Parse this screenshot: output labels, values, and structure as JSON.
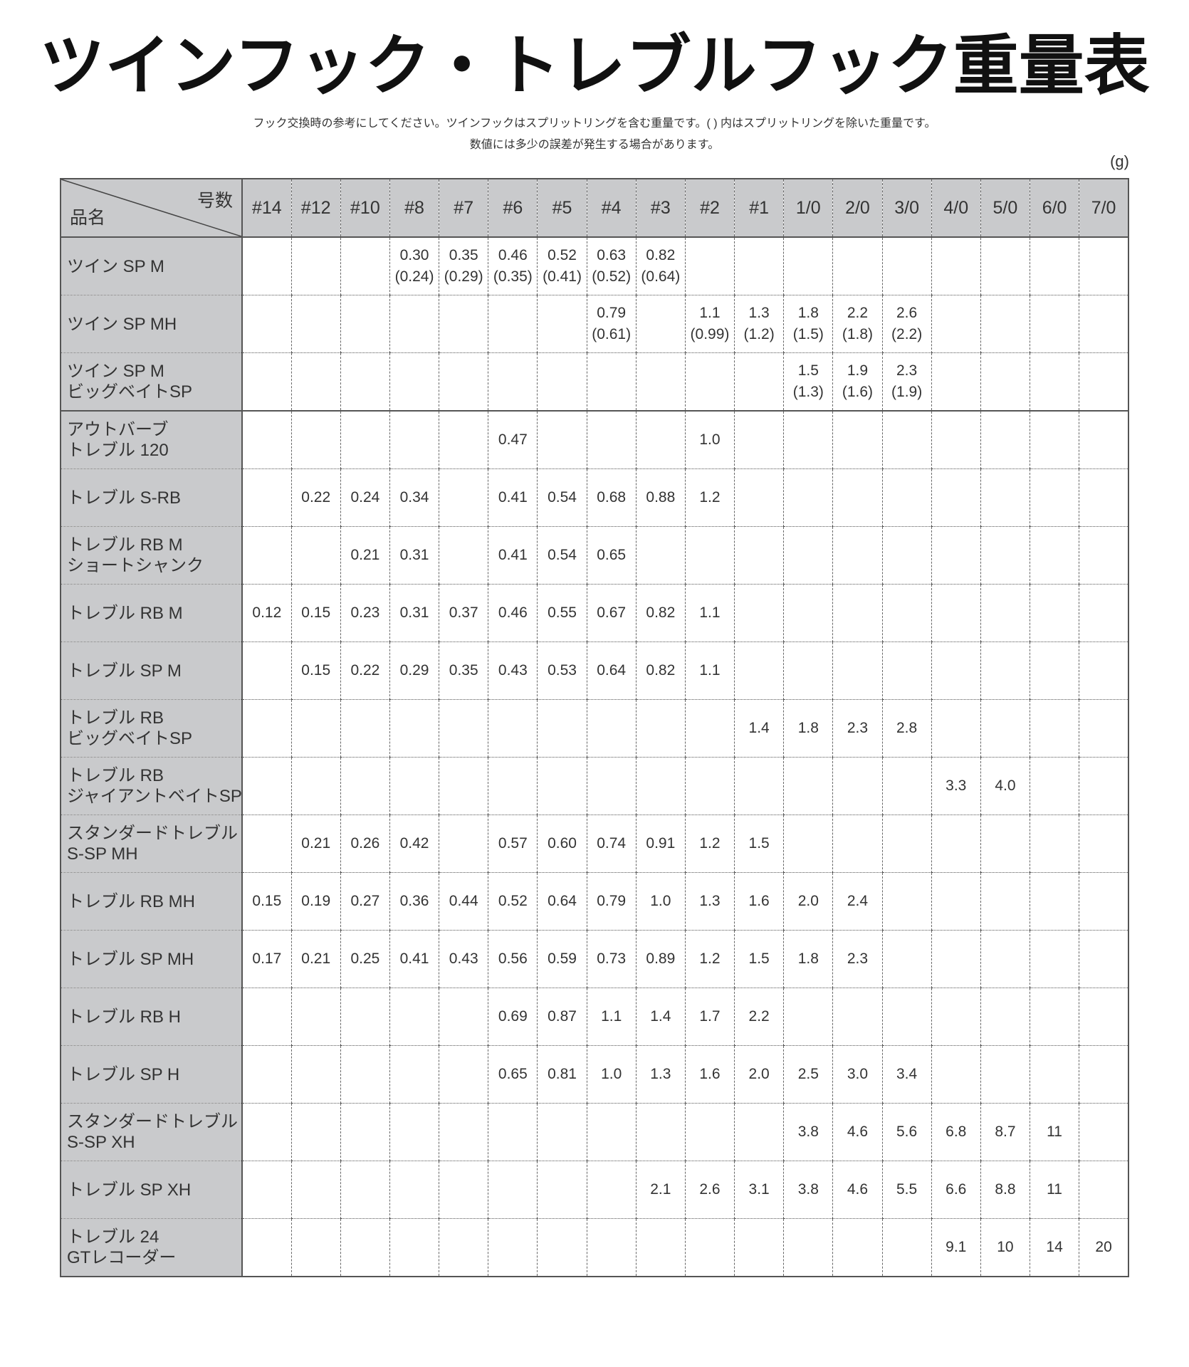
{
  "title": "ツインフック・トレブルフック重量表",
  "notes": [
    "フック交換時の参考にしてください。ツインフックはスプリットリングを含む重量です。( ) 内はスプリットリングを除いた重量です。",
    "数値には多少の誤差が発生する場合があります。"
  ],
  "unit": "(g)",
  "table": {
    "corner_top": "号数",
    "corner_bottom": "品名",
    "columns": [
      "#14",
      "#12",
      "#10",
      "#8",
      "#7",
      "#6",
      "#5",
      "#4",
      "#3",
      "#2",
      "#1",
      "1/0",
      "2/0",
      "3/0",
      "4/0",
      "5/0",
      "6/0",
      "7/0"
    ],
    "rows": [
      {
        "name": [
          "ツイン SP M"
        ],
        "cells": [
          "",
          "",
          "",
          "0.30",
          "0.35",
          "0.46",
          "0.52",
          "0.63",
          "0.82",
          "",
          "",
          "",
          "",
          "",
          "",
          "",
          "",
          ""
        ],
        "sub": [
          "",
          "",
          "",
          "(0.24)",
          "(0.29)",
          "(0.35)",
          "(0.41)",
          "(0.52)",
          "(0.64)",
          "",
          "",
          "",
          "",
          "",
          "",
          "",
          "",
          ""
        ]
      },
      {
        "name": [
          "ツイン SP MH"
        ],
        "cells": [
          "",
          "",
          "",
          "",
          "",
          "",
          "",
          "0.79",
          "",
          "1.1",
          "1.3",
          "1.8",
          "2.2",
          "2.6",
          "",
          "",
          "",
          ""
        ],
        "sub": [
          "",
          "",
          "",
          "",
          "",
          "",
          "",
          "(0.61)",
          "",
          "(0.99)",
          "(1.2)",
          "(1.5)",
          "(1.8)",
          "(2.2)",
          "",
          "",
          "",
          ""
        ]
      },
      {
        "name": [
          "ツイン SP M",
          "ビッグベイトSP"
        ],
        "cells": [
          "",
          "",
          "",
          "",
          "",
          "",
          "",
          "",
          "",
          "",
          "",
          "1.5",
          "1.9",
          "2.3",
          "",
          "",
          "",
          ""
        ],
        "sub": [
          "",
          "",
          "",
          "",
          "",
          "",
          "",
          "",
          "",
          "",
          "",
          "(1.3)",
          "(1.6)",
          "(1.9)",
          "",
          "",
          "",
          ""
        ]
      },
      {
        "name": [
          "アウトバーブ",
          "トレブル 120"
        ],
        "cells": [
          "",
          "",
          "",
          "",
          "",
          "0.47",
          "",
          "",
          "",
          "1.0",
          "",
          "",
          "",
          "",
          "",
          "",
          "",
          ""
        ]
      },
      {
        "name": [
          "トレブル S-RB"
        ],
        "cells": [
          "",
          "0.22",
          "0.24",
          "0.34",
          "",
          "0.41",
          "0.54",
          "0.68",
          "0.88",
          "1.2",
          "",
          "",
          "",
          "",
          "",
          "",
          "",
          ""
        ]
      },
      {
        "name": [
          "トレブル RB M",
          "ショートシャンク"
        ],
        "cells": [
          "",
          "",
          "0.21",
          "0.31",
          "",
          "0.41",
          "0.54",
          "0.65",
          "",
          "",
          "",
          "",
          "",
          "",
          "",
          "",
          "",
          ""
        ]
      },
      {
        "name": [
          "トレブル RB M"
        ],
        "cells": [
          "0.12",
          "0.15",
          "0.23",
          "0.31",
          "0.37",
          "0.46",
          "0.55",
          "0.67",
          "0.82",
          "1.1",
          "",
          "",
          "",
          "",
          "",
          "",
          "",
          ""
        ]
      },
      {
        "name": [
          "トレブル SP M"
        ],
        "cells": [
          "",
          "0.15",
          "0.22",
          "0.29",
          "0.35",
          "0.43",
          "0.53",
          "0.64",
          "0.82",
          "1.1",
          "",
          "",
          "",
          "",
          "",
          "",
          "",
          ""
        ]
      },
      {
        "name": [
          "トレブル RB",
          "ビッグベイトSP"
        ],
        "cells": [
          "",
          "",
          "",
          "",
          "",
          "",
          "",
          "",
          "",
          "",
          "1.4",
          "1.8",
          "2.3",
          "2.8",
          "",
          "",
          "",
          ""
        ]
      },
      {
        "name": [
          "トレブル RB",
          "ジャイアントベイトSP"
        ],
        "cells": [
          "",
          "",
          "",
          "",
          "",
          "",
          "",
          "",
          "",
          "",
          "",
          "",
          "",
          "",
          "3.3",
          "4.0",
          "",
          ""
        ]
      },
      {
        "name": [
          "スタンダードトレブル",
          "S-SP MH"
        ],
        "cells": [
          "",
          "0.21",
          "0.26",
          "0.42",
          "",
          "0.57",
          "0.60",
          "0.74",
          "0.91",
          "1.2",
          "1.5",
          "",
          "",
          "",
          "",
          "",
          "",
          ""
        ]
      },
      {
        "name": [
          "トレブル RB MH"
        ],
        "cells": [
          "0.15",
          "0.19",
          "0.27",
          "0.36",
          "0.44",
          "0.52",
          "0.64",
          "0.79",
          "1.0",
          "1.3",
          "1.6",
          "2.0",
          "2.4",
          "",
          "",
          "",
          "",
          ""
        ]
      },
      {
        "name": [
          "トレブル SP MH"
        ],
        "cells": [
          "0.17",
          "0.21",
          "0.25",
          "0.41",
          "0.43",
          "0.56",
          "0.59",
          "0.73",
          "0.89",
          "1.2",
          "1.5",
          "1.8",
          "2.3",
          "",
          "",
          "",
          "",
          ""
        ]
      },
      {
        "name": [
          "トレブル RB H"
        ],
        "cells": [
          "",
          "",
          "",
          "",
          "",
          "0.69",
          "0.87",
          "1.1",
          "1.4",
          "1.7",
          "2.2",
          "",
          "",
          "",
          "",
          "",
          "",
          ""
        ]
      },
      {
        "name": [
          "トレブル SP H"
        ],
        "cells": [
          "",
          "",
          "",
          "",
          "",
          "0.65",
          "0.81",
          "1.0",
          "1.3",
          "1.6",
          "2.0",
          "2.5",
          "3.0",
          "3.4",
          "",
          "",
          "",
          ""
        ]
      },
      {
        "name": [
          "スタンダードトレブル",
          "S-SP XH"
        ],
        "cells": [
          "",
          "",
          "",
          "",
          "",
          "",
          "",
          "",
          "",
          "",
          "",
          "3.8",
          "4.6",
          "5.6",
          "6.8",
          "8.7",
          "11",
          ""
        ]
      },
      {
        "name": [
          "トレブル SP XH"
        ],
        "cells": [
          "",
          "",
          "",
          "",
          "",
          "",
          "",
          "",
          "2.1",
          "2.6",
          "3.1",
          "3.8",
          "4.6",
          "5.5",
          "6.6",
          "8.8",
          "11",
          ""
        ]
      },
      {
        "name": [
          "トレブル 24",
          "GTレコーダー"
        ],
        "cells": [
          "",
          "",
          "",
          "",
          "",
          "",
          "",
          "",
          "",
          "",
          "",
          "",
          "",
          "",
          "9.1",
          "10",
          "14",
          "20"
        ]
      }
    ]
  }
}
